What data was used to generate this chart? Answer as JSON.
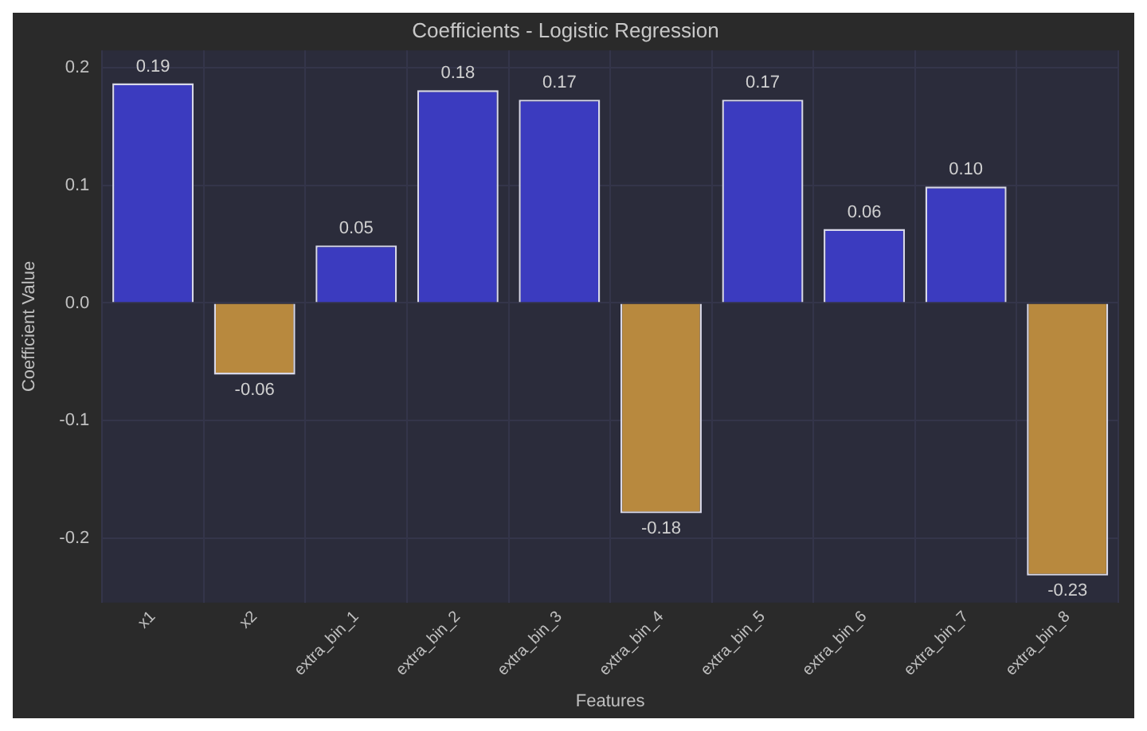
{
  "chart_data": {
    "type": "bar",
    "title": "Coefficients - Logistic Regression",
    "xlabel": "Features",
    "ylabel": "Coefficient Value",
    "categories": [
      "x1",
      "x2",
      "extra_bin_1",
      "extra_bin_2",
      "extra_bin_3",
      "extra_bin_4",
      "extra_bin_5",
      "extra_bin_6",
      "extra_bin_7",
      "extra_bin_8"
    ],
    "values": [
      0.187,
      -0.061,
      0.049,
      0.181,
      0.173,
      -0.179,
      0.173,
      0.063,
      0.099,
      -0.232
    ],
    "value_labels": [
      "0.19",
      "-0.06",
      "0.05",
      "0.18",
      "0.17",
      "-0.18",
      "0.17",
      "0.06",
      "0.10",
      "-0.23"
    ],
    "colors": [
      "#3b3bbf",
      "#b8893e",
      "#3b3bbf",
      "#3b3bbf",
      "#3b3bbf",
      "#b8893e",
      "#3b3bbf",
      "#3b3bbf",
      "#3b3bbf",
      "#b8893e"
    ],
    "ylim": [
      -0.255,
      0.215
    ],
    "yticks": [
      -0.2,
      -0.1,
      {
        "value": 0,
        "label": "0.0"
      },
      0.1,
      0.2
    ],
    "grid": true,
    "legend": false
  }
}
